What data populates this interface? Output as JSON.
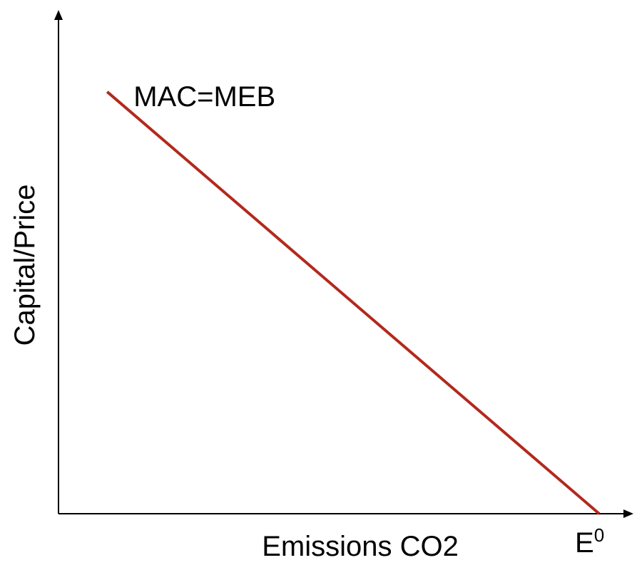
{
  "chart_data": {
    "type": "line",
    "title": "",
    "xlabel": "Emissions CO2",
    "ylabel": "Capital/Price",
    "x_tick_label": {
      "base": "E",
      "superscript": "0"
    },
    "series": [
      {
        "name": "MAC=MEB",
        "color": "#b22a1e",
        "x": [
          0.09,
          1.0
        ],
        "y": [
          0.84,
          0.0
        ]
      }
    ],
    "xlim": [
      0,
      1.09
    ],
    "ylim": [
      0,
      1.0
    ],
    "grid": false,
    "axes_arrows": true,
    "axis_color": "#000000"
  }
}
